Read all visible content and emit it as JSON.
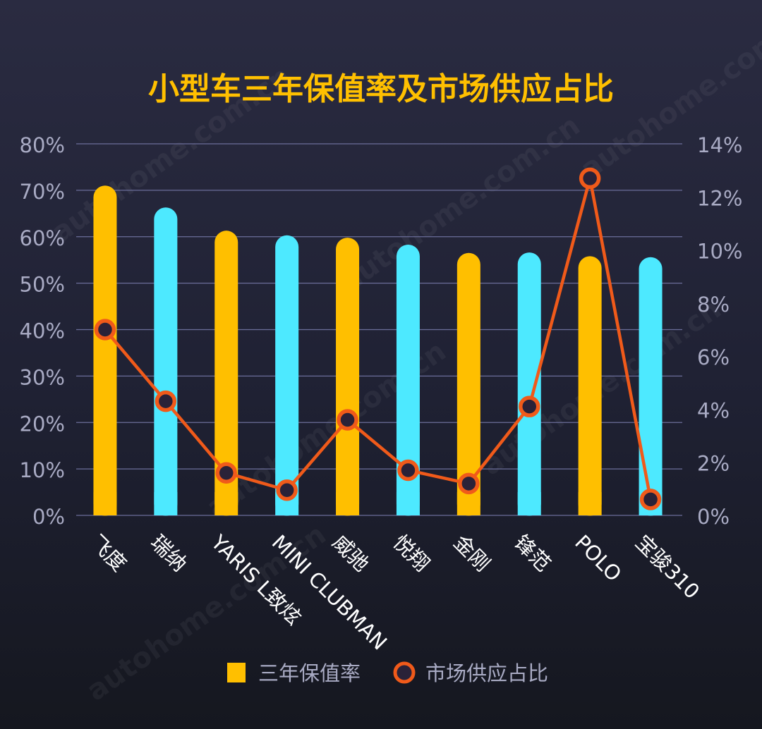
{
  "watermark": "autohome.com.cn",
  "colors": {
    "background": "#22243a",
    "title": "#ffc000",
    "bar_a": "#ffbf00",
    "bar_b": "#4de9ff",
    "line": "#f05a1a",
    "marker_fill": "#2a2238",
    "grid": "#6b6e9a",
    "tick_text": "#a9abc4",
    "label_text": "#ffffff"
  },
  "chart_data": {
    "type": "bar",
    "title": "小型车三年保值率及市场供应占比",
    "categories": [
      "飞度",
      "瑞纳",
      "YARIS L致炫",
      "MINI CLUBMAN",
      "威驰",
      "悦翔",
      "金刚",
      "锋范",
      "POLO",
      "宝骏310"
    ],
    "series": [
      {
        "name": "三年保值率",
        "type": "bar",
        "axis": "left",
        "values": [
          71.0,
          66.3,
          61.3,
          60.3,
          59.8,
          58.3,
          56.5,
          56.6,
          55.8,
          55.6
        ]
      },
      {
        "name": "市场供应占比",
        "type": "line",
        "axis": "right",
        "values": [
          7.0,
          4.3,
          1.6,
          0.95,
          3.6,
          1.7,
          1.2,
          4.1,
          12.7,
          0.6
        ]
      }
    ],
    "left_axis": {
      "ticks": [
        "0%",
        "10%",
        "20%",
        "30%",
        "40%",
        "50%",
        "60%",
        "70%",
        "80%"
      ],
      "ylim": [
        0,
        80
      ]
    },
    "right_axis": {
      "ticks": [
        "0%",
        "2%",
        "4%",
        "6%",
        "8%",
        "10%",
        "12%",
        "14%"
      ],
      "ylim": [
        0,
        14
      ]
    },
    "grid": true,
    "legend_position": "bottom-center"
  }
}
